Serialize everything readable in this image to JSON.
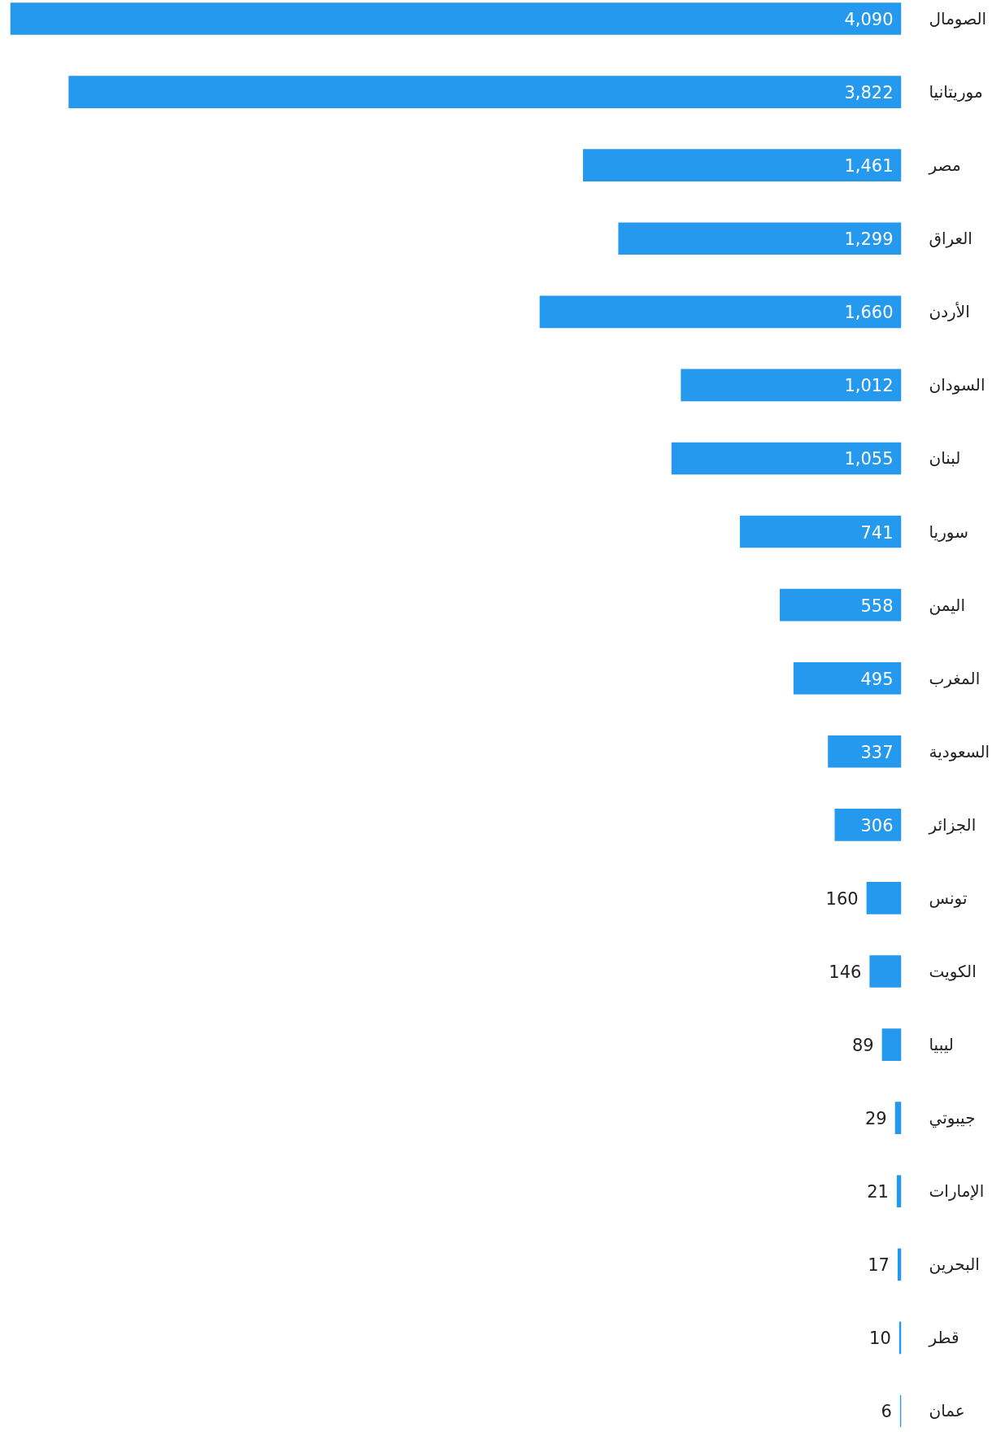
{
  "chart_data": {
    "type": "bar",
    "orientation": "horizontal",
    "grid": false,
    "tick_labels": "y",
    "value_labels": [
      "4,090",
      "3,822",
      "1,461",
      "1,299",
      "1,660",
      "1,012",
      "1,055",
      "741",
      "558",
      "495",
      "337",
      "306",
      "160",
      "146",
      "89",
      "29",
      "21",
      "17",
      "10",
      "6"
    ],
    "categories": [
      "الصومال",
      "موريتانيا",
      "مصر",
      "العراق",
      "الأردن",
      "السودان",
      "لبنان",
      "سوريا",
      "اليمن",
      "المغرب",
      "السعودية",
      "الجزائر",
      "تونس",
      "الكويت",
      "ليبيا",
      "جيبوتي",
      "الإمارات",
      "البحرين",
      "قطر",
      "عمان"
    ],
    "values": [
      4090,
      3822,
      1461,
      1299,
      1660,
      1012,
      1055,
      741,
      558,
      495,
      337,
      306,
      160,
      146,
      89,
      29,
      21,
      17,
      10,
      6
    ],
    "color": "#2499ee"
  }
}
